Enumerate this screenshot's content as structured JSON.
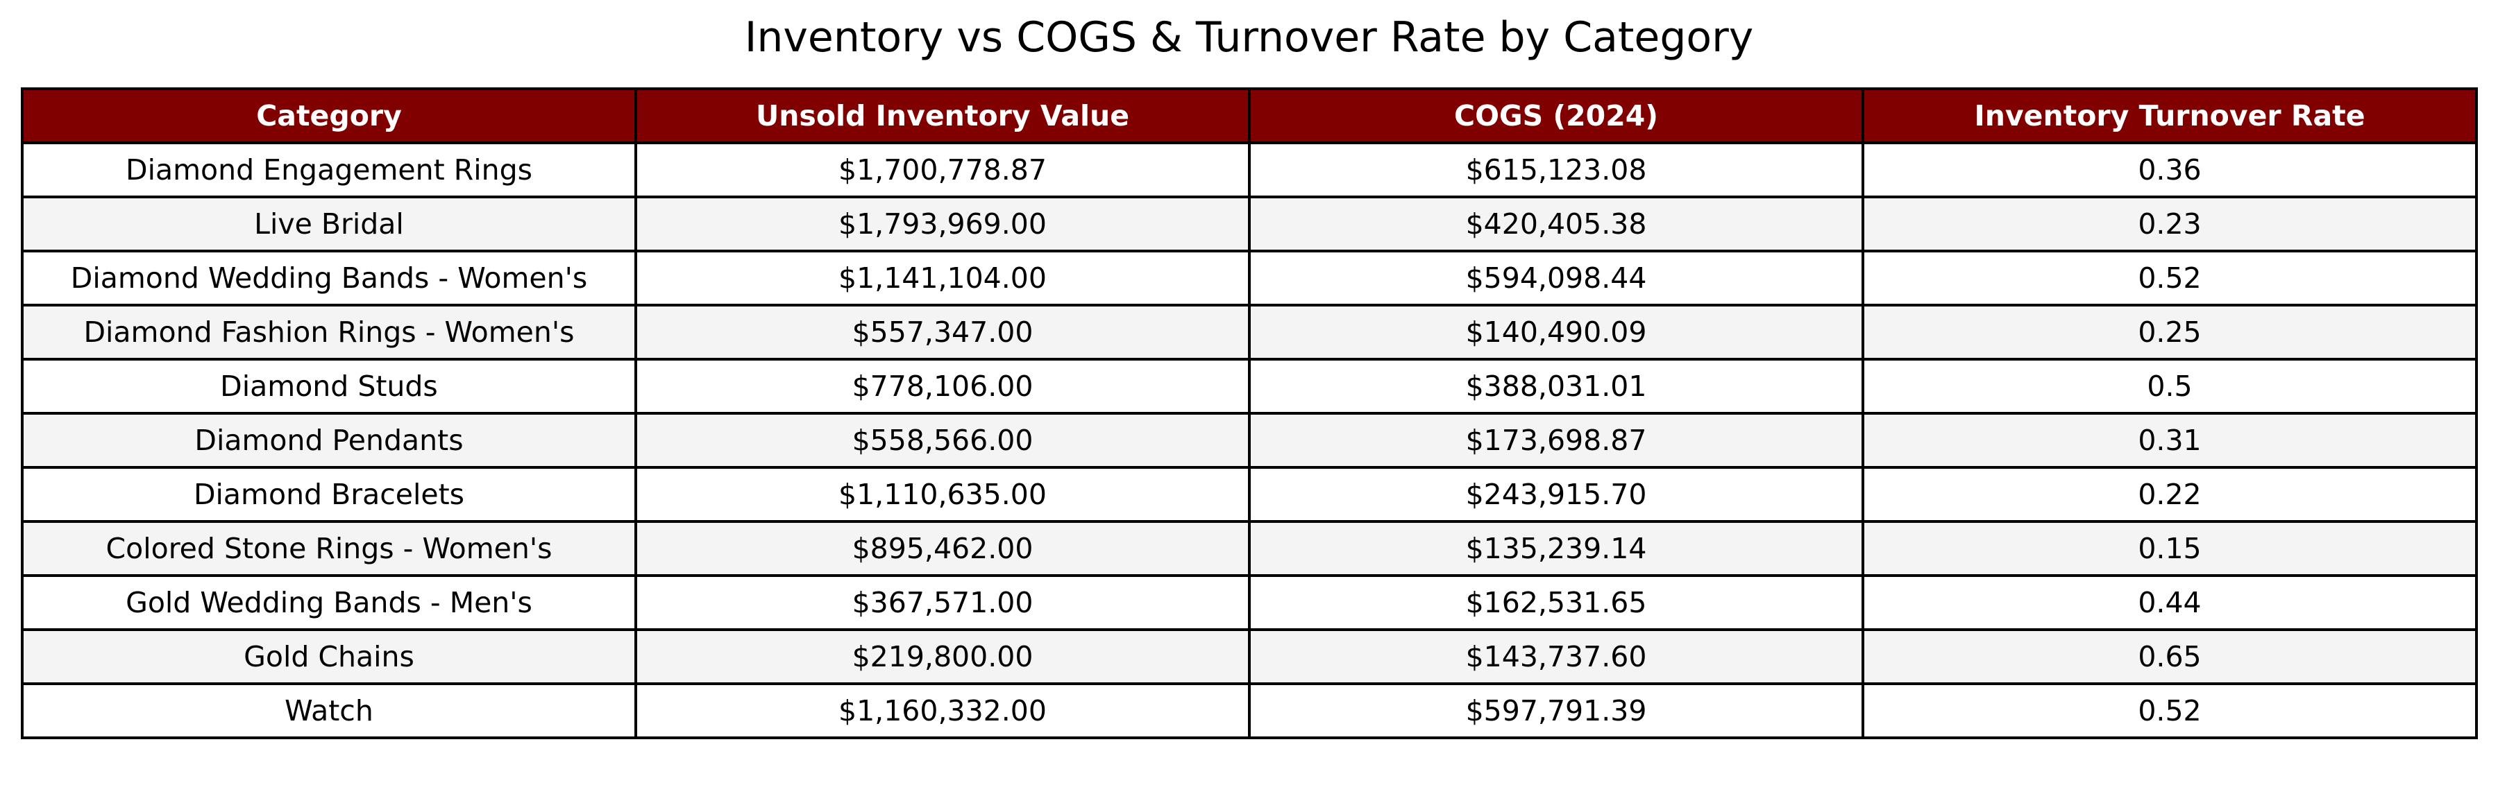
{
  "chart_data": {
    "type": "table",
    "title": "Inventory vs COGS & Turnover Rate by Category",
    "columns": [
      "Category",
      "Unsold Inventory Value",
      "COGS (2024)",
      "Inventory Turnover Rate"
    ],
    "rows": [
      [
        "Diamond Engagement Rings",
        "$1,700,778.87",
        "$615,123.08",
        "0.36"
      ],
      [
        "Live Bridal",
        "$1,793,969.00",
        "$420,405.38",
        "0.23"
      ],
      [
        "Diamond Wedding Bands - Women's",
        "$1,141,104.00",
        "$594,098.44",
        "0.52"
      ],
      [
        "Diamond Fashion Rings - Women's",
        "$557,347.00",
        "$140,490.09",
        "0.25"
      ],
      [
        "Diamond Studs",
        "$778,106.00",
        "$388,031.01",
        "0.5"
      ],
      [
        "Diamond Pendants",
        "$558,566.00",
        "$173,698.87",
        "0.31"
      ],
      [
        "Diamond Bracelets",
        "$1,110,635.00",
        "$243,915.70",
        "0.22"
      ],
      [
        "Colored Stone Rings - Women's",
        "$895,462.00",
        "$135,239.14",
        "0.15"
      ],
      [
        "Gold Wedding Bands - Men's",
        "$367,571.00",
        "$162,531.65",
        "0.44"
      ],
      [
        "Gold Chains",
        "$219,800.00",
        "$143,737.60",
        "0.65"
      ],
      [
        "Watch",
        "$1,160,332.00",
        "$597,791.39",
        "0.52"
      ]
    ]
  },
  "colors": {
    "header_background": "#800000",
    "header_text": "#ffffff",
    "row_odd": "#ffffff",
    "row_even": "#f4f4f4",
    "border": "#000000"
  }
}
